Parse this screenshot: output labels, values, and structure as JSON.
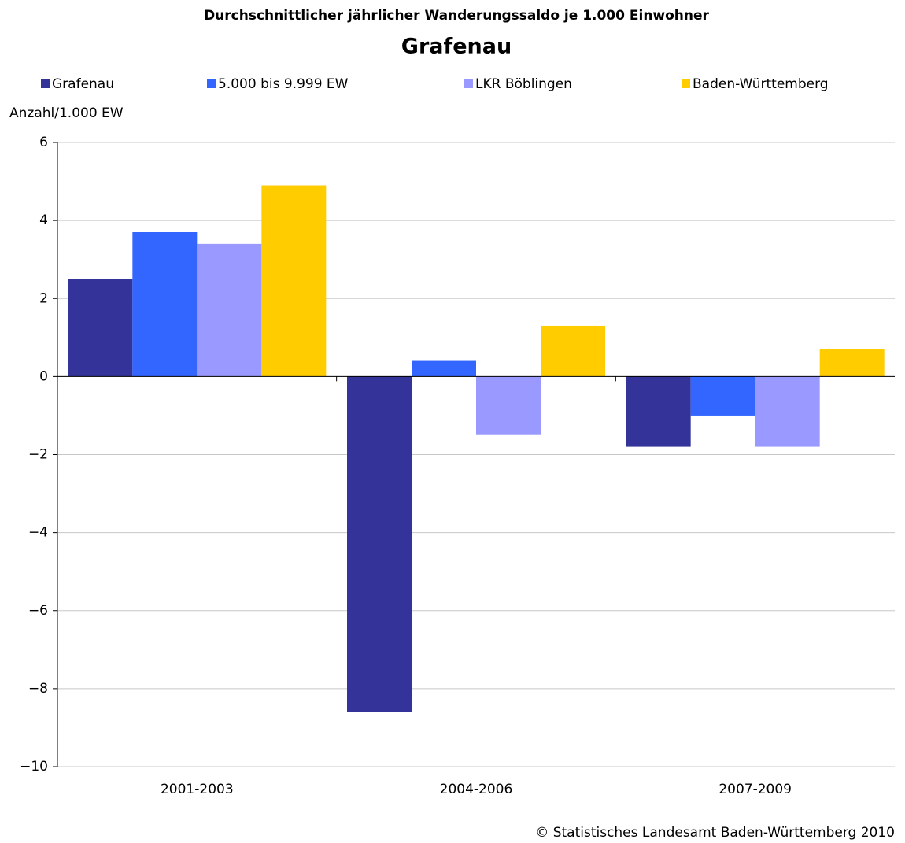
{
  "chart_data": {
    "type": "bar",
    "title": "Durchschnittlicher jährlicher Wanderungssaldo je 1.000 Einwohner",
    "subtitle": "Grafenau",
    "y_label": "Anzahl/1.000 EW",
    "source": "© Statistisches Landesamt Baden-Württemberg 2010",
    "categories": [
      "2001-2003",
      "2004-2006",
      "2007-2009"
    ],
    "series": [
      {
        "name": "Grafenau",
        "color": "#333399",
        "values": [
          2.5,
          -8.6,
          -1.8
        ]
      },
      {
        "name": "5.000 bis 9.999 EW",
        "color": "#3366ff",
        "values": [
          3.7,
          0.4,
          -1.0
        ]
      },
      {
        "name": "LKR Böblingen",
        "color": "#9999ff",
        "values": [
          3.4,
          -1.5,
          -1.8
        ]
      },
      {
        "name": "Baden-Württemberg",
        "color": "#ffcc00",
        "values": [
          4.9,
          1.3,
          0.7
        ]
      }
    ],
    "ylim": [
      -10,
      6
    ],
    "yticks": [
      {
        "value": -10,
        "label": "−10"
      },
      {
        "value": -8,
        "label": "−8"
      },
      {
        "value": -6,
        "label": "−6"
      },
      {
        "value": -4,
        "label": "−4"
      },
      {
        "value": -2,
        "label": "−2"
      },
      0,
      2,
      4,
      6
    ],
    "grid": true,
    "legend": "top"
  }
}
